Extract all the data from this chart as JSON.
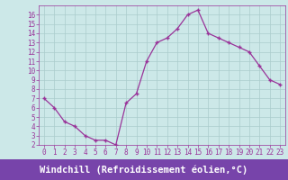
{
  "x": [
    0,
    1,
    2,
    3,
    4,
    5,
    6,
    7,
    8,
    9,
    10,
    11,
    12,
    13,
    14,
    15,
    16,
    17,
    18,
    19,
    20,
    21,
    22,
    23
  ],
  "y": [
    7.0,
    6.0,
    4.5,
    4.0,
    3.0,
    2.5,
    2.5,
    2.0,
    6.5,
    7.5,
    11.0,
    13.0,
    13.5,
    14.5,
    16.0,
    16.5,
    14.0,
    13.5,
    13.0,
    12.5,
    12.0,
    10.5,
    9.0,
    8.5
  ],
  "line_color": "#993399",
  "marker": "+",
  "bg_color": "#cce8e8",
  "grid_color": "#aacccc",
  "xlabel": "Windchill (Refroidissement éolien,°C)",
  "xlabel_bg": "#7744aa",
  "xlabel_color": "#ffffff",
  "ylim": [
    2,
    17
  ],
  "xlim": [
    -0.5,
    23.5
  ],
  "yticks": [
    2,
    3,
    4,
    5,
    6,
    7,
    8,
    9,
    10,
    11,
    12,
    13,
    14,
    15,
    16
  ],
  "xticks": [
    0,
    1,
    2,
    3,
    4,
    5,
    6,
    7,
    8,
    9,
    10,
    11,
    12,
    13,
    14,
    15,
    16,
    17,
    18,
    19,
    20,
    21,
    22,
    23
  ],
  "tick_color": "#993399",
  "tick_label_fontsize": 5.5,
  "xlabel_fontsize": 7.5
}
